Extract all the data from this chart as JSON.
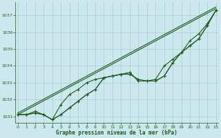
{
  "title": "Graphe pression niveau de la mer (hPa)",
  "bg_color": "#cce8ee",
  "line_color": "#1a5c18",
  "grid_color": "#aacccc",
  "ylim": [
    1030.6,
    1037.8
  ],
  "xlim": [
    -0.3,
    23.3
  ],
  "xticks": [
    0,
    1,
    2,
    3,
    4,
    5,
    6,
    7,
    8,
    9,
    10,
    11,
    12,
    13,
    14,
    15,
    16,
    17,
    18,
    19,
    20,
    21,
    22,
    23
  ],
  "yticks": [
    1031,
    1032,
    1033,
    1034,
    1035,
    1036,
    1037
  ],
  "series1": [
    1031.1,
    1031.1,
    1031.2,
    1031.1,
    1030.8,
    1031.1,
    1031.5,
    1031.9,
    1032.3,
    1032.6,
    1033.3,
    1033.4,
    1033.5,
    1033.6,
    1033.1,
    1033.1,
    1033.1,
    1033.4,
    1034.2,
    1034.8,
    1035.2,
    1035.6,
    1036.4,
    1037.3
  ],
  "series2": [
    1031.1,
    1031.1,
    1031.2,
    1031.1,
    1030.8,
    1031.1,
    1031.5,
    1031.9,
    1032.3,
    1032.6,
    1033.3,
    1033.4,
    1033.5,
    1033.6,
    1033.1,
    1033.1,
    1033.1,
    1033.4,
    1034.2,
    1034.8,
    1035.2,
    1035.6,
    1036.4,
    1037.3
  ],
  "series3": [
    1031.1,
    1031.1,
    1031.3,
    1031.1,
    1030.8,
    1031.7,
    1032.3,
    1032.6,
    1033.0,
    1033.2,
    1033.3,
    1033.4,
    1033.5,
    1033.5,
    1033.2,
    1033.1,
    1033.2,
    1034.0,
    1034.4,
    1034.8,
    1035.5,
    1035.9,
    1036.5,
    1037.3
  ],
  "series4_x": [
    0,
    23
  ],
  "series4_y": [
    1031.1,
    1037.4
  ],
  "series5_x": [
    0,
    23
  ],
  "series5_y": [
    1031.2,
    1037.5
  ],
  "marker": "+",
  "markersize": 3,
  "linewidth": 0.8
}
